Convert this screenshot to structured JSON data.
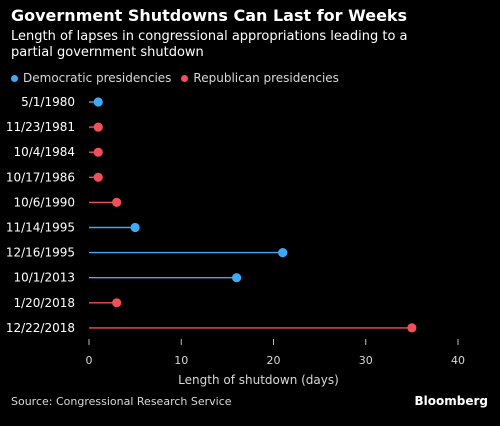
{
  "chart_data": {
    "type": "lollipop",
    "title": "Government Shutdowns Can Last for Weeks",
    "subtitle": "Length of lapses in congressional appropriations leading to a partial government shutdown",
    "xlabel": "Length of shutdown (days)",
    "ylabel": "",
    "xlim": [
      0,
      40
    ],
    "xticks": [
      0,
      10,
      20,
      30,
      40
    ],
    "grid": false,
    "legend_position": "top-left",
    "legend": [
      {
        "name": "Democratic presidencies",
        "color": "#3fa9f5"
      },
      {
        "name": "Republican presidencies",
        "color": "#f0505a"
      }
    ],
    "categories": [
      "5/1/1980",
      "11/23/1981",
      "10/4/1984",
      "10/17/1986",
      "10/6/1990",
      "11/14/1995",
      "12/16/1995",
      "10/1/2013",
      "1/20/2018",
      "12/22/2018"
    ],
    "values": [
      1,
      1,
      1,
      1,
      3,
      5,
      21,
      16,
      3,
      35
    ],
    "party": [
      "Democratic presidencies",
      "Republican presidencies",
      "Republican presidencies",
      "Republican presidencies",
      "Republican presidencies",
      "Democratic presidencies",
      "Democratic presidencies",
      "Democratic presidencies",
      "Republican presidencies",
      "Republican presidencies"
    ]
  },
  "footer": {
    "source": "Source: Congressional Research Service",
    "brand": "Bloomberg"
  }
}
